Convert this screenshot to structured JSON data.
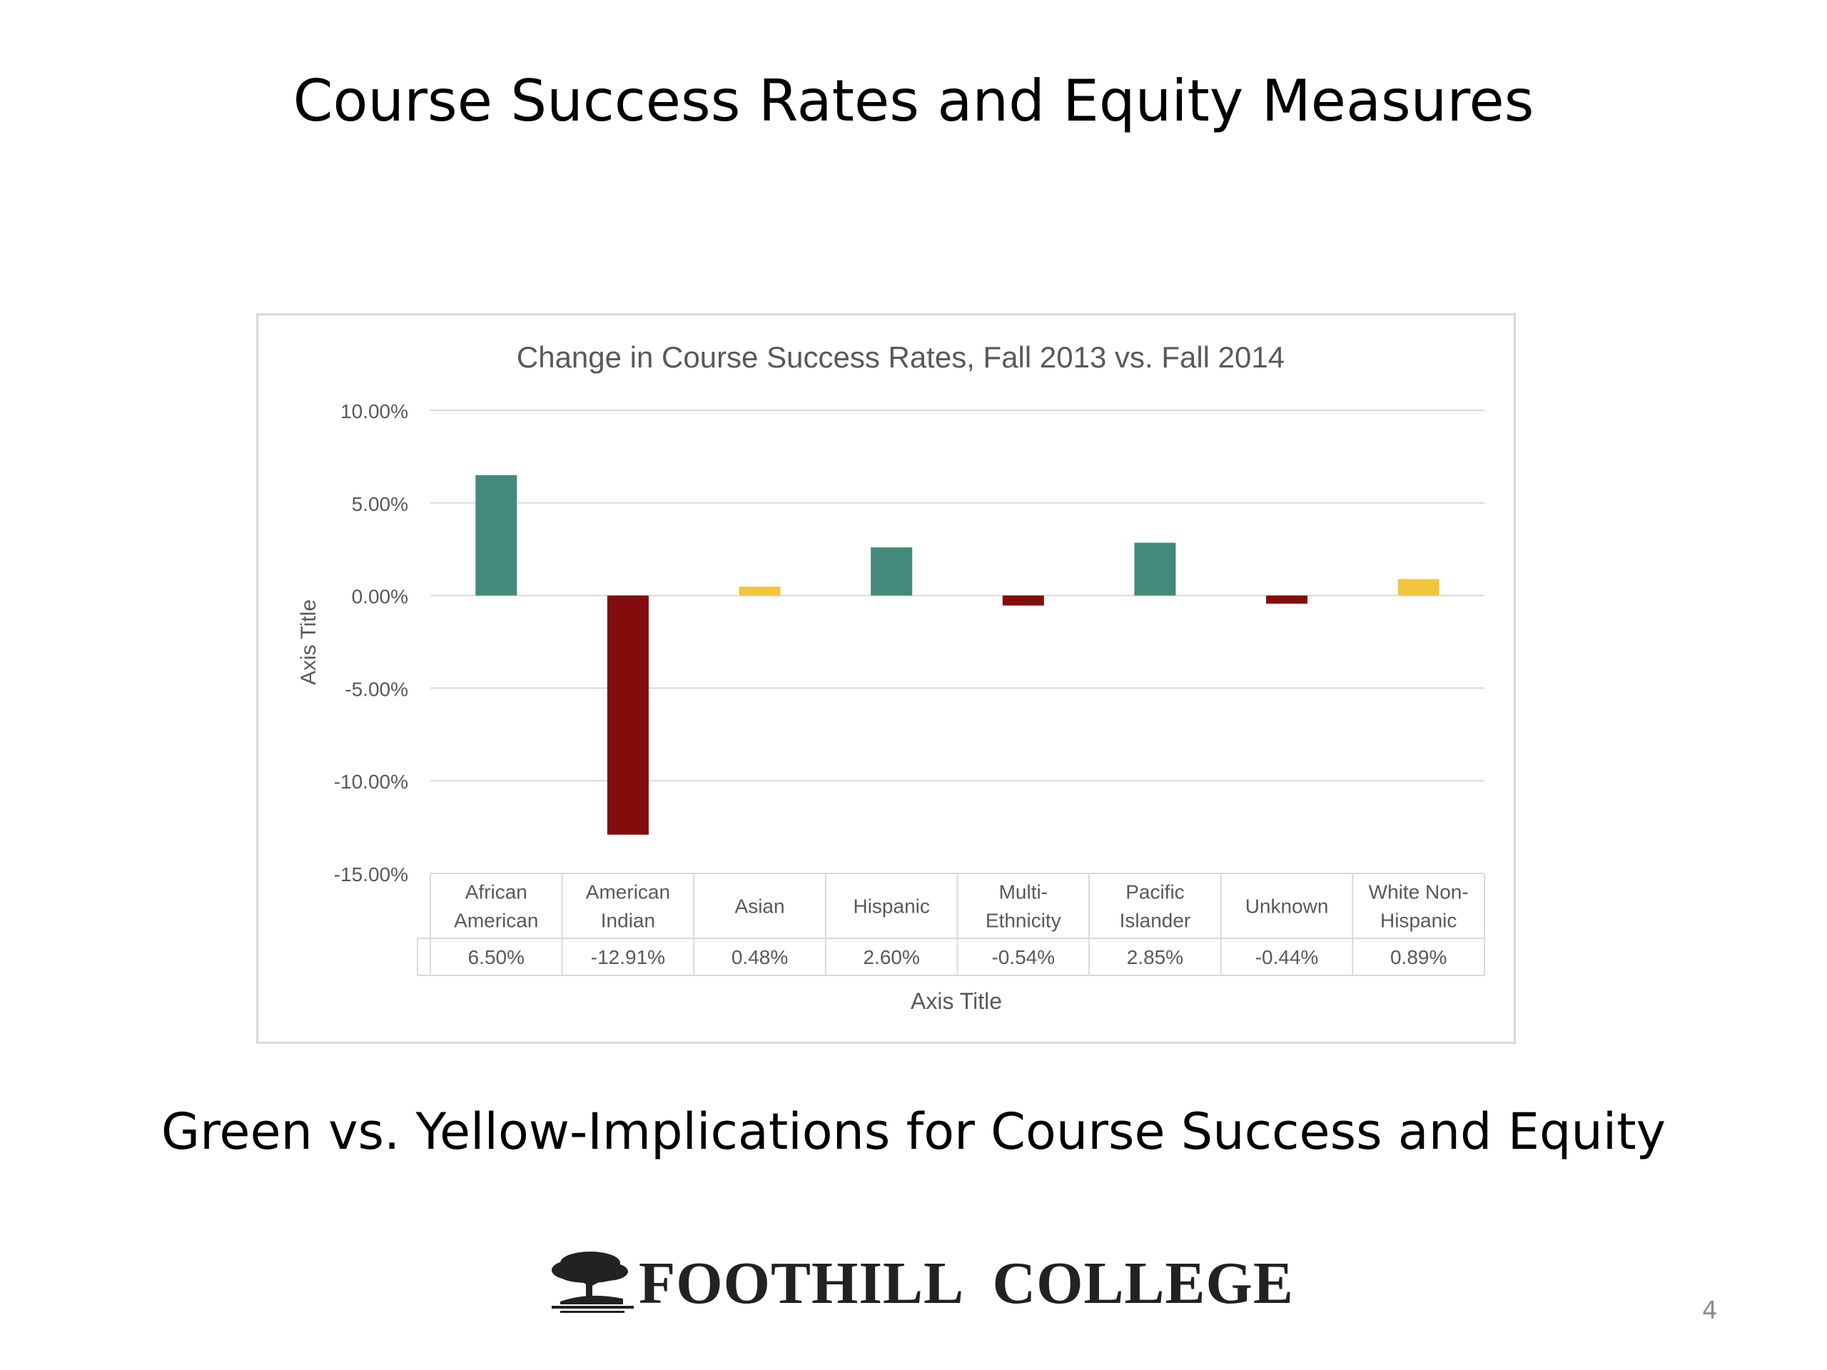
{
  "slide": {
    "title": "Course Success Rates and Equity Measures",
    "subtitle": "Green vs. Yellow-Implications for Course Success and Equity",
    "logo_text": "FOOTHILL  COLLEGE",
    "page_number": "4"
  },
  "chart_data": {
    "type": "bar",
    "title": "Change in Course Success Rates, Fall 2013 vs. Fall 2014",
    "xlabel": "Axis Title",
    "ylabel": "Axis Title",
    "ylim": [
      -0.15,
      0.1
    ],
    "yticks": [
      0.1,
      0.05,
      0.0,
      -0.05,
      -0.1,
      -0.15
    ],
    "ytick_labels": [
      "10.00%",
      "5.00%",
      "0.00%",
      "-5.00%",
      "-10.00%",
      "-15.00%"
    ],
    "grid": true,
    "categories": [
      [
        "African",
        "American"
      ],
      [
        "American",
        "Indian"
      ],
      [
        "Asian"
      ],
      [
        "Hispanic"
      ],
      [
        "Multi-",
        "Ethnicity"
      ],
      [
        "Pacific",
        "Islander"
      ],
      [
        "Unknown"
      ],
      [
        "White Non-",
        "Hispanic"
      ]
    ],
    "values": [
      0.065,
      -0.1291,
      0.0048,
      0.026,
      -0.0054,
      0.0285,
      -0.0044,
      0.0089
    ],
    "value_labels": [
      "6.50%",
      "-12.91%",
      "0.48%",
      "2.60%",
      "-0.54%",
      "2.85%",
      "-0.44%",
      "0.89%"
    ],
    "bar_colors": [
      "#448a7c",
      "#830c0c",
      "#f2c53d",
      "#448a7c",
      "#830c0c",
      "#448a7c",
      "#830c0c",
      "#f2c53d"
    ],
    "data_table": true
  },
  "colors": {
    "green": "#448a7c",
    "dark_red": "#830c0c",
    "yellow": "#f2c53d",
    "gridline": "#d9d9d9",
    "axis_text": "#595959"
  }
}
